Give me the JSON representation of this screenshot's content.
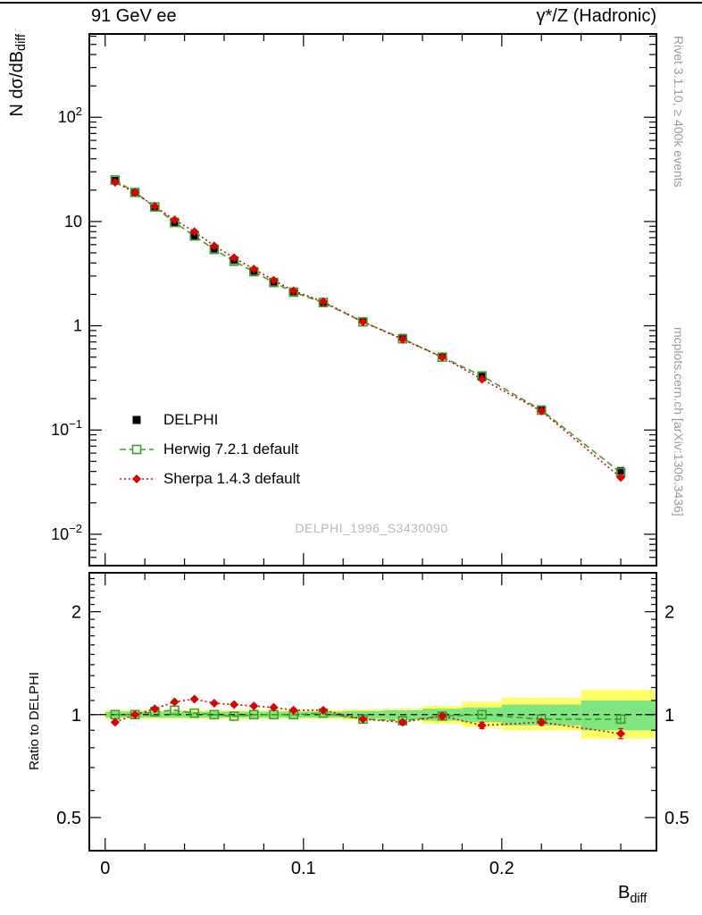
{
  "header": {
    "left": "91 GeV ee",
    "right": "γ*/Z (Hadronic)"
  },
  "side": {
    "top": "Rivet 3.1.10, ≥ 400k events",
    "bottom": "mcplots.cern.ch [arXiv:1306.3436]"
  },
  "watermark": "DELPHI_1996_S3430090",
  "main": {
    "ylabel_base": "N dσ/dB",
    "ylabel_sub": "diff"
  },
  "ratio": {
    "ylabel": "Ratio to DELPHI"
  },
  "xlabel_base": "B",
  "xlabel_sub": "diff",
  "chart_data": {
    "type": "line",
    "title": "",
    "xlabel": "B_diff",
    "main_ylabel": "N dσ/dB_diff",
    "ratio_ylabel": "Ratio to DELPHI",
    "colors": {
      "data": "#000000",
      "herwig": "#3f9e28",
      "sherpa": "#dd0000",
      "band_yellow": "#ffff66",
      "band_green": "#7fe57f",
      "watermark": "#b8b8b8",
      "side_text": "#999999"
    },
    "x": [
      0.005,
      0.015,
      0.025,
      0.035,
      0.045,
      0.055,
      0.065,
      0.075,
      0.085,
      0.095,
      0.11,
      0.13,
      0.15,
      0.17,
      0.19,
      0.22,
      0.26
    ],
    "bin_edges": [
      0,
      0.01,
      0.02,
      0.03,
      0.04,
      0.05,
      0.06,
      0.07,
      0.08,
      0.09,
      0.1,
      0.12,
      0.14,
      0.16,
      0.18,
      0.2,
      0.24,
      0.28
    ],
    "series": [
      {
        "name": "DELPHI",
        "role": "data",
        "color": "#000000",
        "marker": "filled-square",
        "values": [
          25,
          19,
          13.5,
          9.5,
          7.2,
          5.4,
          4.2,
          3.3,
          2.6,
          2.1,
          1.65,
          1.12,
          0.78,
          0.51,
          0.33,
          0.16,
          0.04
        ],
        "err_rel": [
          0.02,
          0.015,
          0.015,
          0.015,
          0.015,
          0.015,
          0.015,
          0.02,
          0.02,
          0.02,
          0.015,
          0.02,
          0.025,
          0.03,
          0.035,
          0.04,
          0.09
        ]
      },
      {
        "name": "Herwig 7.2.1 default",
        "role": "mc",
        "color": "#3f9e28",
        "marker": "open-square",
        "line": "dashed",
        "values": [
          25,
          19,
          13.8,
          9.8,
          7.27,
          5.4,
          4.16,
          3.3,
          2.6,
          2.1,
          1.67,
          1.09,
          0.75,
          0.5,
          0.33,
          0.155,
          0.039
        ],
        "ratio": [
          1.0,
          1.0,
          1.02,
          1.03,
          1.01,
          1.0,
          0.99,
          1.0,
          1.0,
          1.0,
          1.01,
          0.97,
          0.96,
          0.99,
          1.0,
          0.97,
          0.97
        ],
        "ratio_err": [
          0.005,
          0.004,
          0.005,
          0.005,
          0.005,
          0.005,
          0.005,
          0.005,
          0.005,
          0.006,
          0.005,
          0.006,
          0.008,
          0.01,
          0.012,
          0.012,
          0.02
        ]
      },
      {
        "name": "Sherpa 1.4.3 default",
        "role": "mc",
        "color": "#dd0000",
        "marker": "filled-diamond",
        "line": "dotted",
        "values": [
          23.8,
          19,
          14.0,
          10.35,
          8.0,
          5.83,
          4.49,
          3.5,
          2.73,
          2.16,
          1.7,
          1.09,
          0.74,
          0.5,
          0.307,
          0.152,
          0.035
        ],
        "ratio": [
          0.95,
          1.0,
          1.04,
          1.09,
          1.11,
          1.08,
          1.07,
          1.06,
          1.05,
          1.03,
          1.03,
          0.97,
          0.95,
          0.99,
          0.93,
          0.95,
          0.88
        ],
        "ratio_err": [
          0.012,
          0.01,
          0.01,
          0.01,
          0.01,
          0.01,
          0.01,
          0.01,
          0.01,
          0.012,
          0.01,
          0.012,
          0.015,
          0.018,
          0.02,
          0.02,
          0.03
        ]
      }
    ],
    "ratio_band": {
      "yellow_lo": [
        0.97,
        0.97,
        0.97,
        0.97,
        0.97,
        0.97,
        0.97,
        0.97,
        0.97,
        0.97,
        0.97,
        0.965,
        0.96,
        0.94,
        0.92,
        0.9,
        0.85
      ],
      "yellow_hi": [
        1.03,
        1.03,
        1.03,
        1.03,
        1.03,
        1.03,
        1.03,
        1.03,
        1.03,
        1.03,
        1.03,
        1.035,
        1.04,
        1.06,
        1.09,
        1.12,
        1.18
      ],
      "green_lo": [
        0.98,
        0.98,
        0.98,
        0.98,
        0.98,
        0.98,
        0.98,
        0.98,
        0.98,
        0.98,
        0.98,
        0.975,
        0.97,
        0.96,
        0.95,
        0.93,
        0.9
      ],
      "green_hi": [
        1.02,
        1.02,
        1.02,
        1.02,
        1.02,
        1.02,
        1.02,
        1.02,
        1.02,
        1.02,
        1.02,
        1.025,
        1.03,
        1.04,
        1.05,
        1.07,
        1.1
      ]
    },
    "axes": {
      "xlim": [
        -0.008,
        0.278
      ],
      "main_ylim": [
        0.005,
        630
      ],
      "ratio_ylim": [
        0.4,
        2.6
      ],
      "xticks": [
        {
          "v": 0,
          "label": "0"
        },
        {
          "v": 0.1,
          "label": "0.1"
        },
        {
          "v": 0.2,
          "label": "0.2"
        }
      ],
      "xminor_step": 0.02,
      "main_yticks": [
        {
          "v": 100,
          "mant": "10",
          "exp": "2"
        },
        {
          "v": 10,
          "mant": "10",
          "exp": ""
        },
        {
          "v": 1,
          "mant": "1",
          "exp": ""
        },
        {
          "v": 0.1,
          "mant": "10",
          "exp": "−1"
        },
        {
          "v": 0.01,
          "mant": "10",
          "exp": "−2"
        }
      ],
      "ratio_yticks": [
        {
          "v": 2,
          "label": "2"
        },
        {
          "v": 1,
          "label": "1"
        },
        {
          "v": 0.5,
          "label": "0.5"
        }
      ],
      "grid": false,
      "legend_position": "lower-left-of-main-panel"
    }
  }
}
